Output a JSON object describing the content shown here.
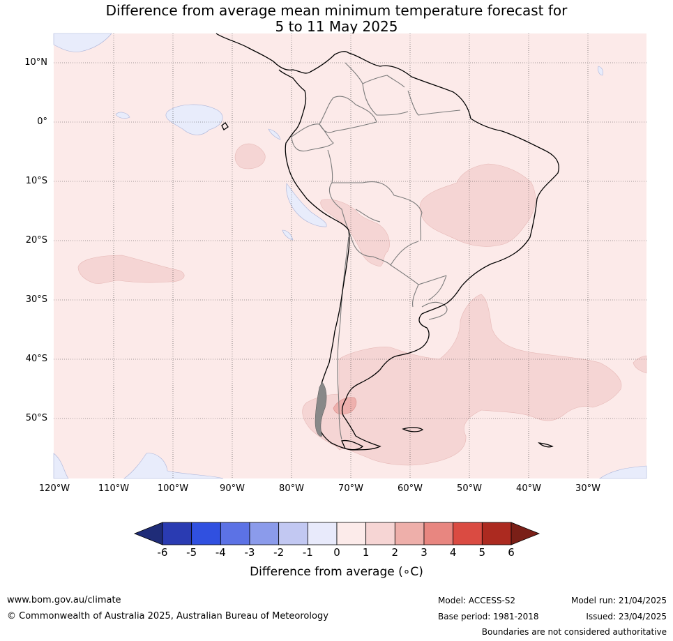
{
  "title": {
    "line1": "Difference from average mean minimum temperature forecast for",
    "line2": "5 to 11 May 2025"
  },
  "map": {
    "lat_labels": [
      "10°N",
      "0°",
      "10°S",
      "20°S",
      "30°S",
      "40°S",
      "50°S"
    ],
    "lon_labels": [
      "120°W",
      "110°W",
      "100°W",
      "90°W",
      "80°W",
      "70°W",
      "60°W",
      "50°W",
      "40°W",
      "30°W"
    ],
    "ocean_anomaly_fill": "#fceae9",
    "warm_anomaly_fill": "#f5d5d4",
    "warmer_anomaly_fill": "#eeb0ad",
    "cool_anomaly_fill": "#e8ecfb"
  },
  "colorbar": {
    "ticks": [
      "-6",
      "-5",
      "-4",
      "-3",
      "-2",
      "-1",
      "0",
      "1",
      "2",
      "3",
      "4",
      "5",
      "6"
    ],
    "colors": [
      "#1f2c78",
      "#2a3bb2",
      "#3050e0",
      "#5c72e5",
      "#8b9beb",
      "#c2c8f2",
      "#e8eafb",
      "#fcebea",
      "#f6d5d4",
      "#eeafaa",
      "#e88680",
      "#da4b42",
      "#ac2a20",
      "#7a1f17"
    ],
    "label": "Difference from average (∘C)"
  },
  "footer": {
    "url": "www.bom.gov.au/climate",
    "copyright": "© Commonwealth of Australia 2025, Australian Bureau of Meteorology",
    "model": "Model: ACCESS-S2",
    "base_period": "Base period: 1981-2018",
    "model_run": "Model run: 21/04/2025",
    "issued": "Issued: 23/04/2025",
    "disclaimer": "Boundaries are not considered authoritative"
  }
}
